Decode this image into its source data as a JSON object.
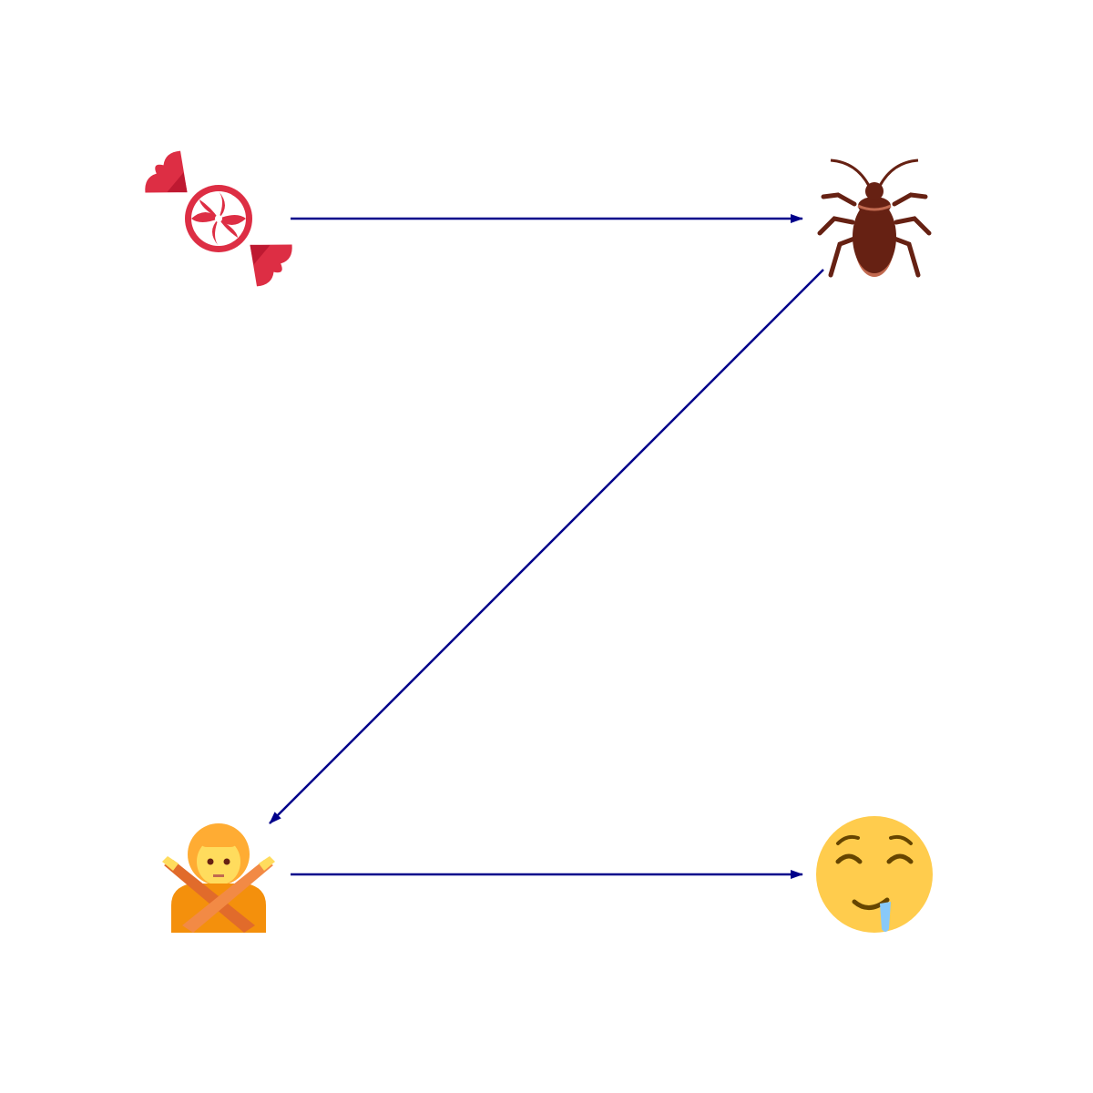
{
  "diagram": {
    "nodes": [
      {
        "id": "candy",
        "icon": "candy-icon",
        "label": ""
      },
      {
        "id": "cockroach",
        "icon": "cockroach-icon",
        "label": ""
      },
      {
        "id": "no-gesture",
        "icon": "person-gesturing-no-icon",
        "label": ""
      },
      {
        "id": "drooling",
        "icon": "drooling-face-icon",
        "label": ""
      }
    ],
    "edges": [
      {
        "from": "candy",
        "to": "cockroach"
      },
      {
        "from": "cockroach",
        "to": "no-gesture"
      },
      {
        "from": "no-gesture",
        "to": "drooling"
      }
    ],
    "colors": {
      "arrow": "#00008B",
      "background": "#FFFFFF"
    }
  }
}
